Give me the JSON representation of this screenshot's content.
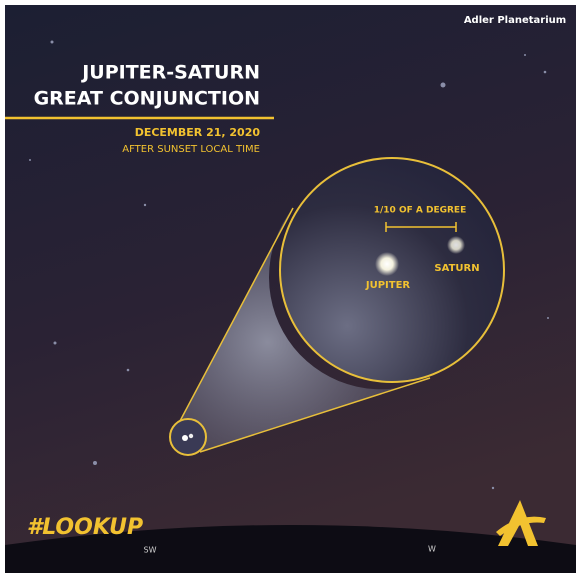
{
  "header": {
    "brand": "Adler Planetarium",
    "title_lines": [
      "JUPITER-SATURN",
      "GREAT CONJUNCTION"
    ],
    "date": "DECEMBER 21, 2020",
    "subtitle": "AFTER SUNSET LOCAL TIME"
  },
  "inset": {
    "scale_label": "1/10 OF A DEGREE",
    "planets": [
      "JUPITER",
      "SATURN"
    ]
  },
  "footer": {
    "hashtag": "#LOOKUP",
    "directions": [
      "SW",
      "W"
    ]
  }
}
